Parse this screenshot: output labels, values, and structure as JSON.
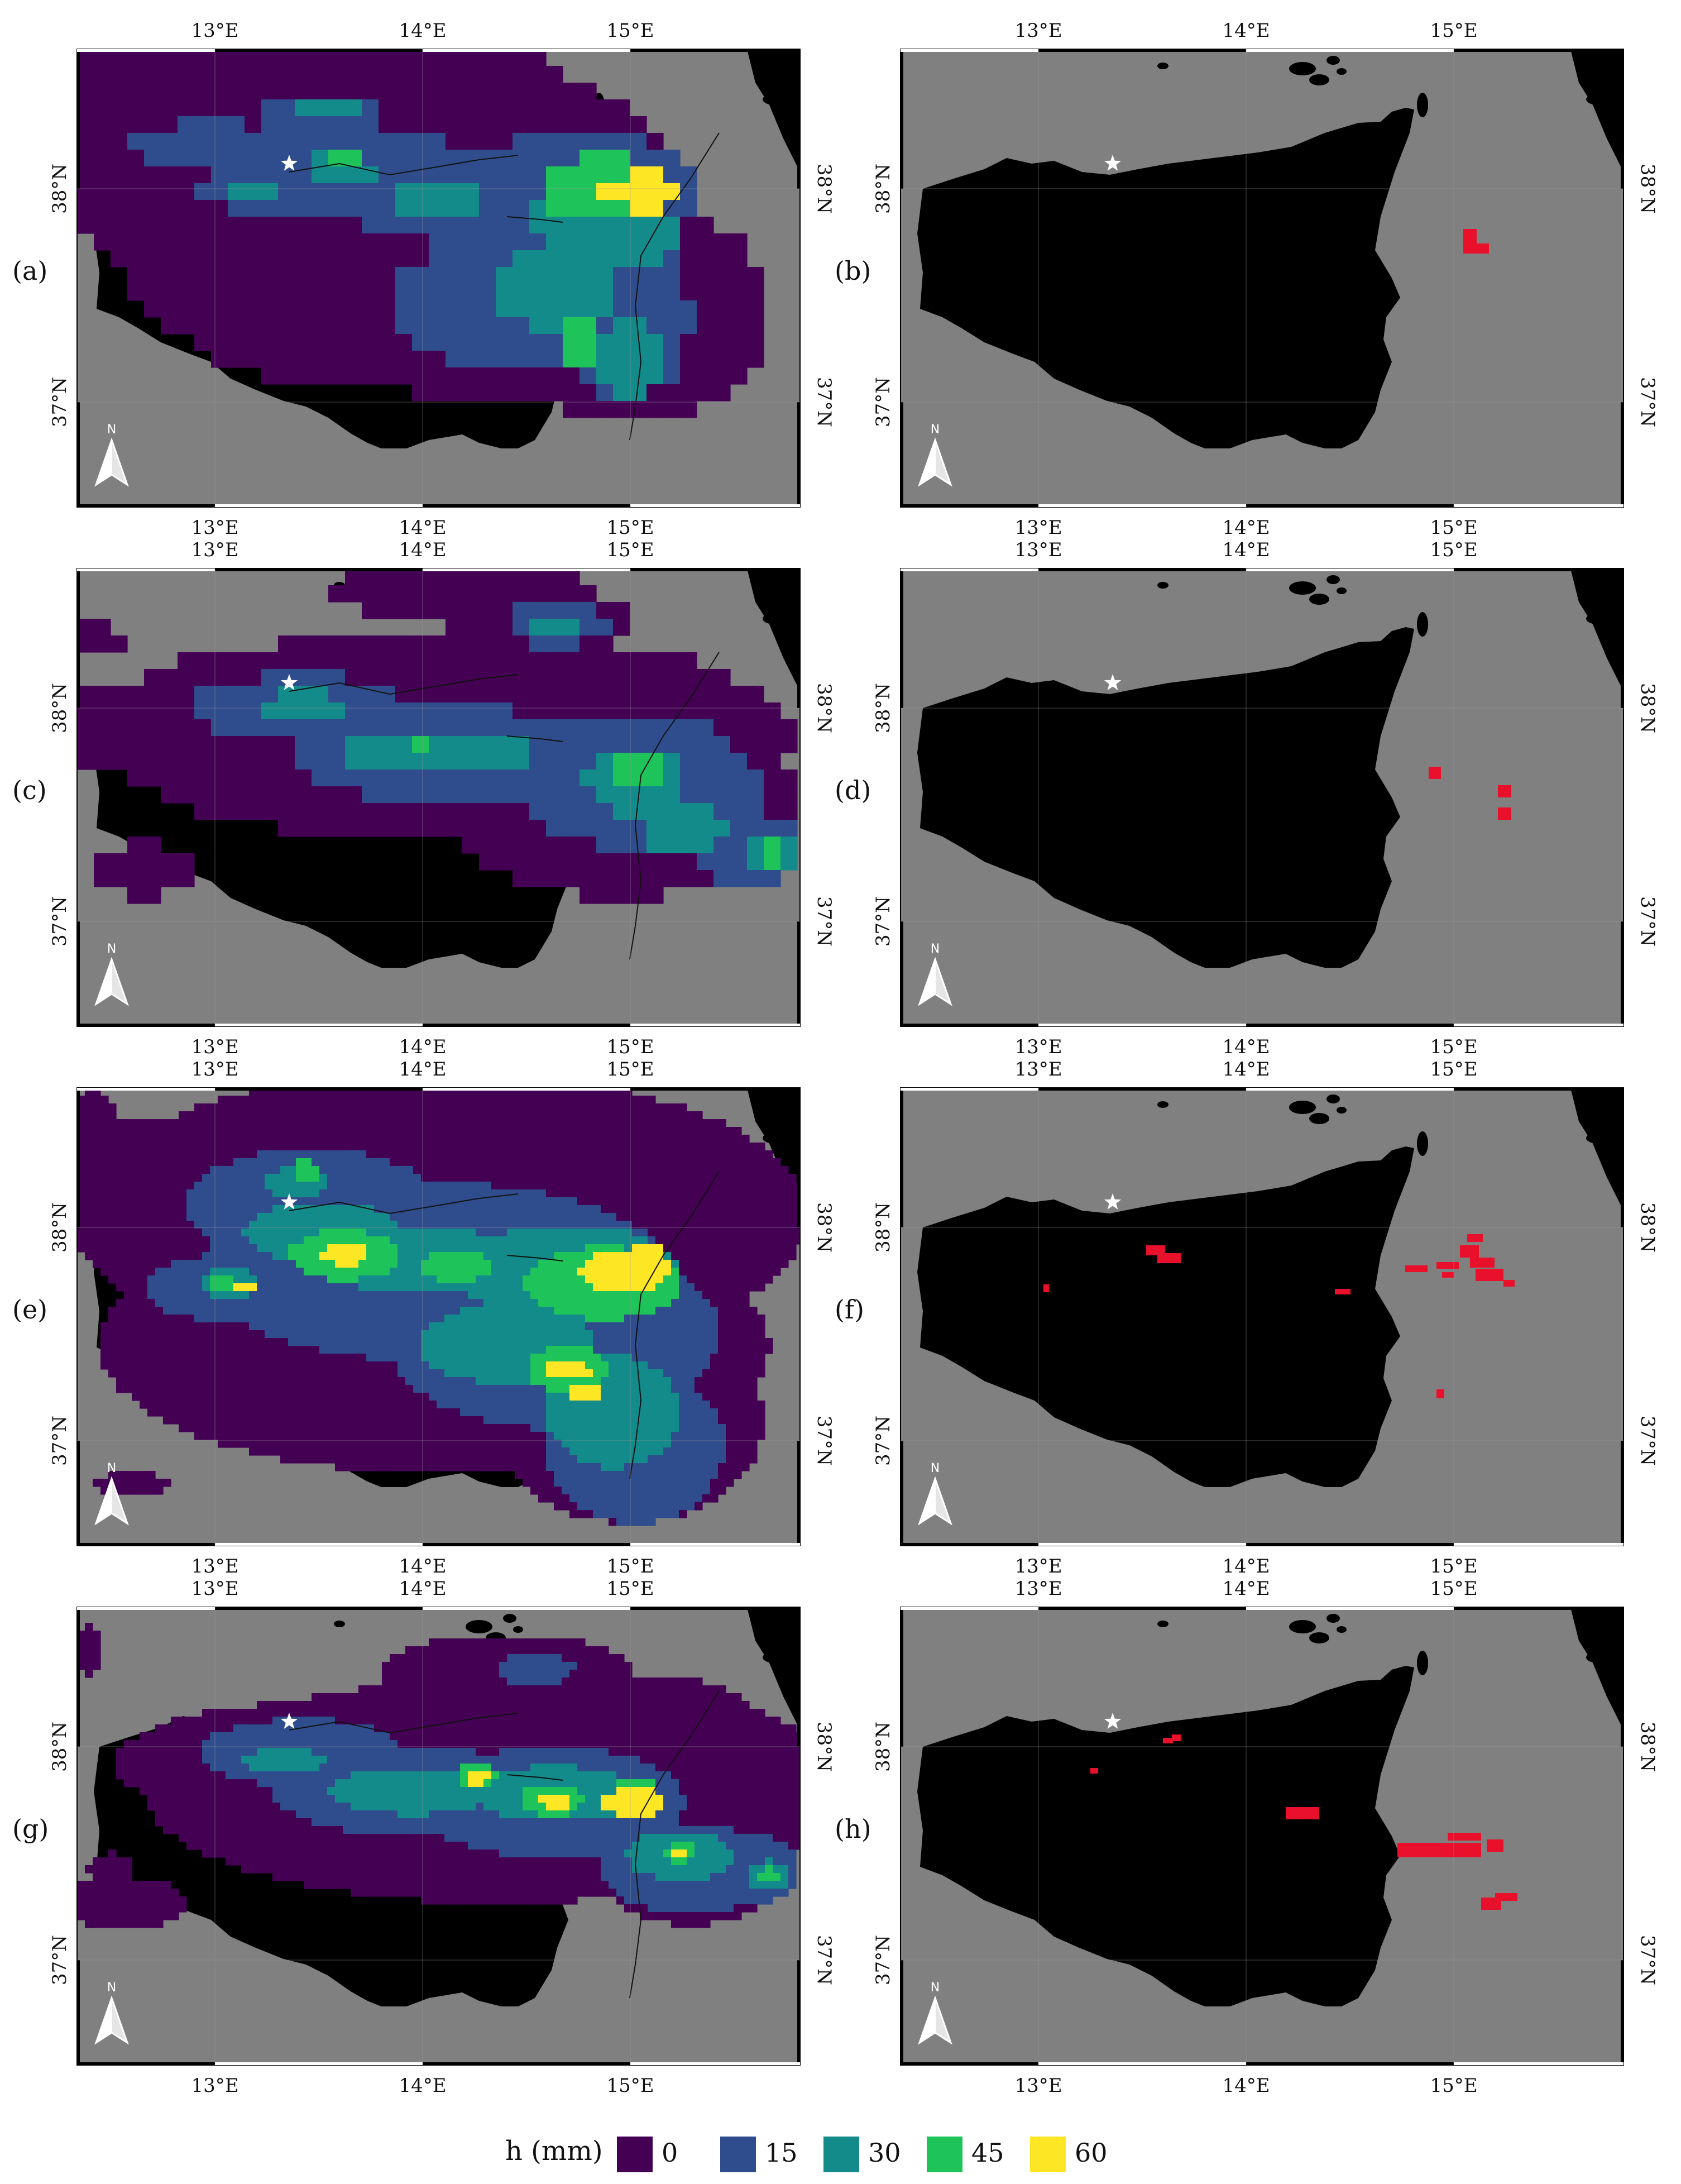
{
  "figure": {
    "axes": {
      "lon_ticks": [
        "13°E",
        "14°E",
        "15°E"
      ],
      "lat_ticks": [
        "38°N",
        "37°N"
      ]
    },
    "north_arrow_label": "N",
    "panels": [
      {
        "label": "(a)",
        "type": "rainfall"
      },
      {
        "label": "(b)",
        "type": "landslide"
      },
      {
        "label": "(c)",
        "type": "rainfall"
      },
      {
        "label": "(d)",
        "type": "landslide"
      },
      {
        "label": "(e)",
        "type": "rainfall"
      },
      {
        "label": "(f)",
        "type": "landslide"
      },
      {
        "label": "(g)",
        "type": "rainfall"
      },
      {
        "label": "(h)",
        "type": "landslide"
      }
    ],
    "colors": {
      "sea": "#808080",
      "land": "#000000",
      "landslide": "#e8102a",
      "star": "#ffffff"
    },
    "legend": {
      "title": "h (mm)",
      "items": [
        {
          "value": "0",
          "color": "#440154"
        },
        {
          "value": "15",
          "color": "#2f4d8c"
        },
        {
          "value": "30",
          "color": "#138b8b"
        },
        {
          "value": "45",
          "color": "#1ec35a"
        },
        {
          "value": "60",
          "color": "#fde725"
        }
      ]
    }
  }
}
